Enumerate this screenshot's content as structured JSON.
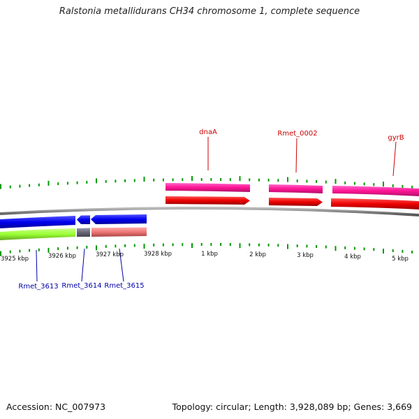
{
  "title": "Ralstonia metallidurans CH34 chromosome 1, complete sequence",
  "accession": "Accession: NC_007973",
  "summary": "Topology: circular; Length: 3,928,089 bp; Genes: 3,669",
  "ticks": [
    {
      "label": "3925 kbp"
    },
    {
      "label": "3926 kbp"
    },
    {
      "label": "3927 kbp"
    },
    {
      "label": "3928 kbp"
    },
    {
      "label": "1 kbp"
    },
    {
      "label": "2 kbp"
    },
    {
      "label": "3 kbp"
    },
    {
      "label": "4 kbp"
    },
    {
      "label": "5 kbp"
    }
  ],
  "labels": {
    "dnaA": "dnaA",
    "rmet_0002": "Rmet_0002",
    "gyrB": "gyrB",
    "rmet_3613": "Rmet_3613",
    "rmet_3614": "Rmet_3614",
    "rmet_3615": "Rmet_3615"
  },
  "colors": {
    "cds_forward": "#ff0000",
    "cds_forward_class": "#ff1493",
    "cds_reverse": "#0000ee",
    "class_green": "#99ff33",
    "class_gray": "#666677",
    "class_salmon": "#ee7777",
    "backbone": "#888888",
    "tick": "#009900"
  }
}
